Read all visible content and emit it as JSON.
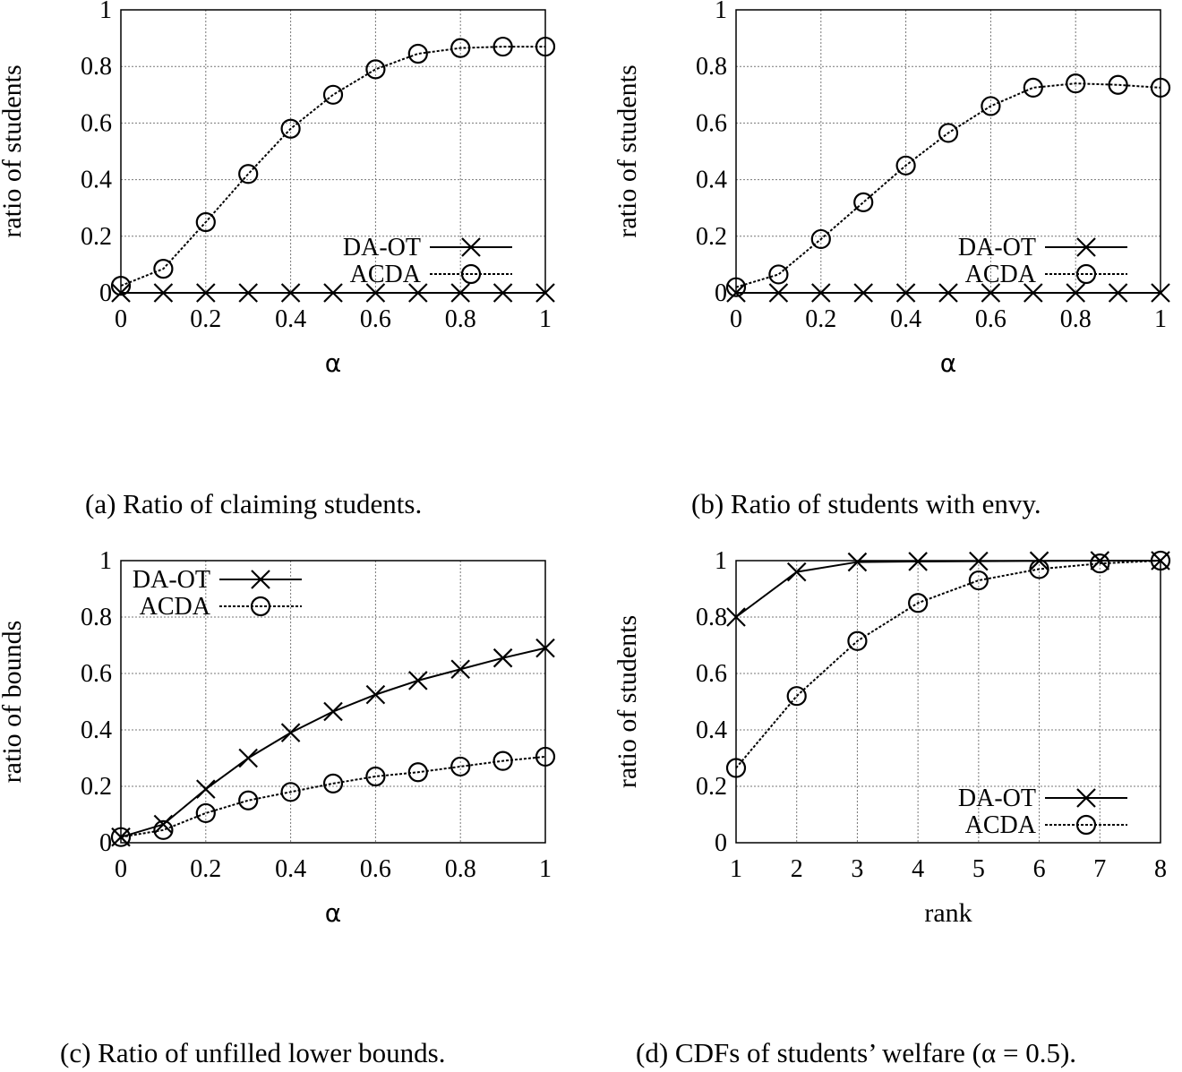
{
  "figure": {
    "captions": [
      "(a) Ratio of claiming students.",
      "(b) Ratio of students with envy.",
      "(c) Ratio of unfilled lower bounds.",
      "(d) CDFs of students’ welfare (α = 0.5)."
    ]
  },
  "chart_data": [
    {
      "type": "line",
      "title": "(a) Ratio of claiming students.",
      "xlabel": "α",
      "ylabel": "ratio of students",
      "x": [
        0,
        0.1,
        0.2,
        0.3,
        0.4,
        0.5,
        0.6,
        0.7,
        0.8,
        0.9,
        1.0
      ],
      "xticks": [
        "0",
        "0.2",
        "0.4",
        "0.6",
        "0.8",
        "1"
      ],
      "yticks": [
        "0",
        "0.2",
        "0.4",
        "0.6",
        "0.8",
        "1"
      ],
      "xlim": [
        0,
        1
      ],
      "ylim": [
        0,
        1
      ],
      "grid": true,
      "legend_position": "bottom-right",
      "series": [
        {
          "name": "DA-OT",
          "marker": "x",
          "line": "solid",
          "values": [
            0,
            0,
            0,
            0,
            0,
            0,
            0,
            0,
            0,
            0,
            0
          ]
        },
        {
          "name": "ACDA",
          "marker": "o",
          "line": "dotted",
          "values": [
            0.025,
            0.085,
            0.25,
            0.42,
            0.58,
            0.7,
            0.79,
            0.845,
            0.865,
            0.87,
            0.87
          ]
        }
      ]
    },
    {
      "type": "line",
      "title": "(b) Ratio of students with envy.",
      "xlabel": "α",
      "ylabel": "ratio of students",
      "x": [
        0,
        0.1,
        0.2,
        0.3,
        0.4,
        0.5,
        0.6,
        0.7,
        0.8,
        0.9,
        1.0
      ],
      "xticks": [
        "0",
        "0.2",
        "0.4",
        "0.6",
        "0.8",
        "1"
      ],
      "yticks": [
        "0",
        "0.2",
        "0.4",
        "0.6",
        "0.8",
        "1"
      ],
      "xlim": [
        0,
        1
      ],
      "ylim": [
        0,
        1
      ],
      "grid": true,
      "legend_position": "bottom-right",
      "series": [
        {
          "name": "DA-OT",
          "marker": "x",
          "line": "solid",
          "values": [
            0,
            0,
            0,
            0,
            0,
            0,
            0,
            0,
            0,
            0,
            0
          ]
        },
        {
          "name": "ACDA",
          "marker": "o",
          "line": "dotted",
          "values": [
            0.02,
            0.065,
            0.19,
            0.32,
            0.45,
            0.565,
            0.66,
            0.725,
            0.74,
            0.735,
            0.725
          ]
        }
      ]
    },
    {
      "type": "line",
      "title": "(c) Ratio of unfilled lower bounds.",
      "xlabel": "α",
      "ylabel": "ratio of bounds",
      "x": [
        0,
        0.1,
        0.2,
        0.3,
        0.4,
        0.5,
        0.6,
        0.7,
        0.8,
        0.9,
        1.0
      ],
      "xticks": [
        "0",
        "0.2",
        "0.4",
        "0.6",
        "0.8",
        "1"
      ],
      "yticks": [
        "0",
        "0.2",
        "0.4",
        "0.6",
        "0.8",
        "1"
      ],
      "xlim": [
        0,
        1
      ],
      "ylim": [
        0,
        1
      ],
      "grid": true,
      "legend_position": "top-left",
      "series": [
        {
          "name": "DA-OT",
          "marker": "x",
          "line": "solid",
          "values": [
            0.02,
            0.065,
            0.19,
            0.3,
            0.39,
            0.465,
            0.525,
            0.575,
            0.615,
            0.655,
            0.69
          ]
        },
        {
          "name": "ACDA",
          "marker": "o",
          "line": "dotted",
          "values": [
            0.02,
            0.045,
            0.105,
            0.15,
            0.18,
            0.21,
            0.235,
            0.25,
            0.27,
            0.29,
            0.305
          ]
        }
      ]
    },
    {
      "type": "line",
      "title": "(d) CDFs of students’ welfare (α = 0.5).",
      "xlabel": "rank",
      "ylabel": "ratio of students",
      "x": [
        1,
        2,
        3,
        4,
        5,
        6,
        7,
        8
      ],
      "xticks": [
        "1",
        "2",
        "3",
        "4",
        "5",
        "6",
        "7",
        "8"
      ],
      "yticks": [
        "0",
        "0.2",
        "0.4",
        "0.6",
        "0.8",
        "1"
      ],
      "xlim": [
        1,
        8
      ],
      "ylim": [
        0,
        1
      ],
      "grid": true,
      "legend_position": "bottom-right",
      "series": [
        {
          "name": "DA-OT",
          "marker": "x",
          "line": "solid",
          "values": [
            0.8,
            0.96,
            0.995,
            0.997,
            0.998,
            0.999,
            1.0,
            1.0
          ]
        },
        {
          "name": "ACDA",
          "marker": "o",
          "line": "dotted",
          "values": [
            0.265,
            0.52,
            0.715,
            0.85,
            0.93,
            0.97,
            0.99,
            1.0
          ]
        }
      ]
    }
  ]
}
